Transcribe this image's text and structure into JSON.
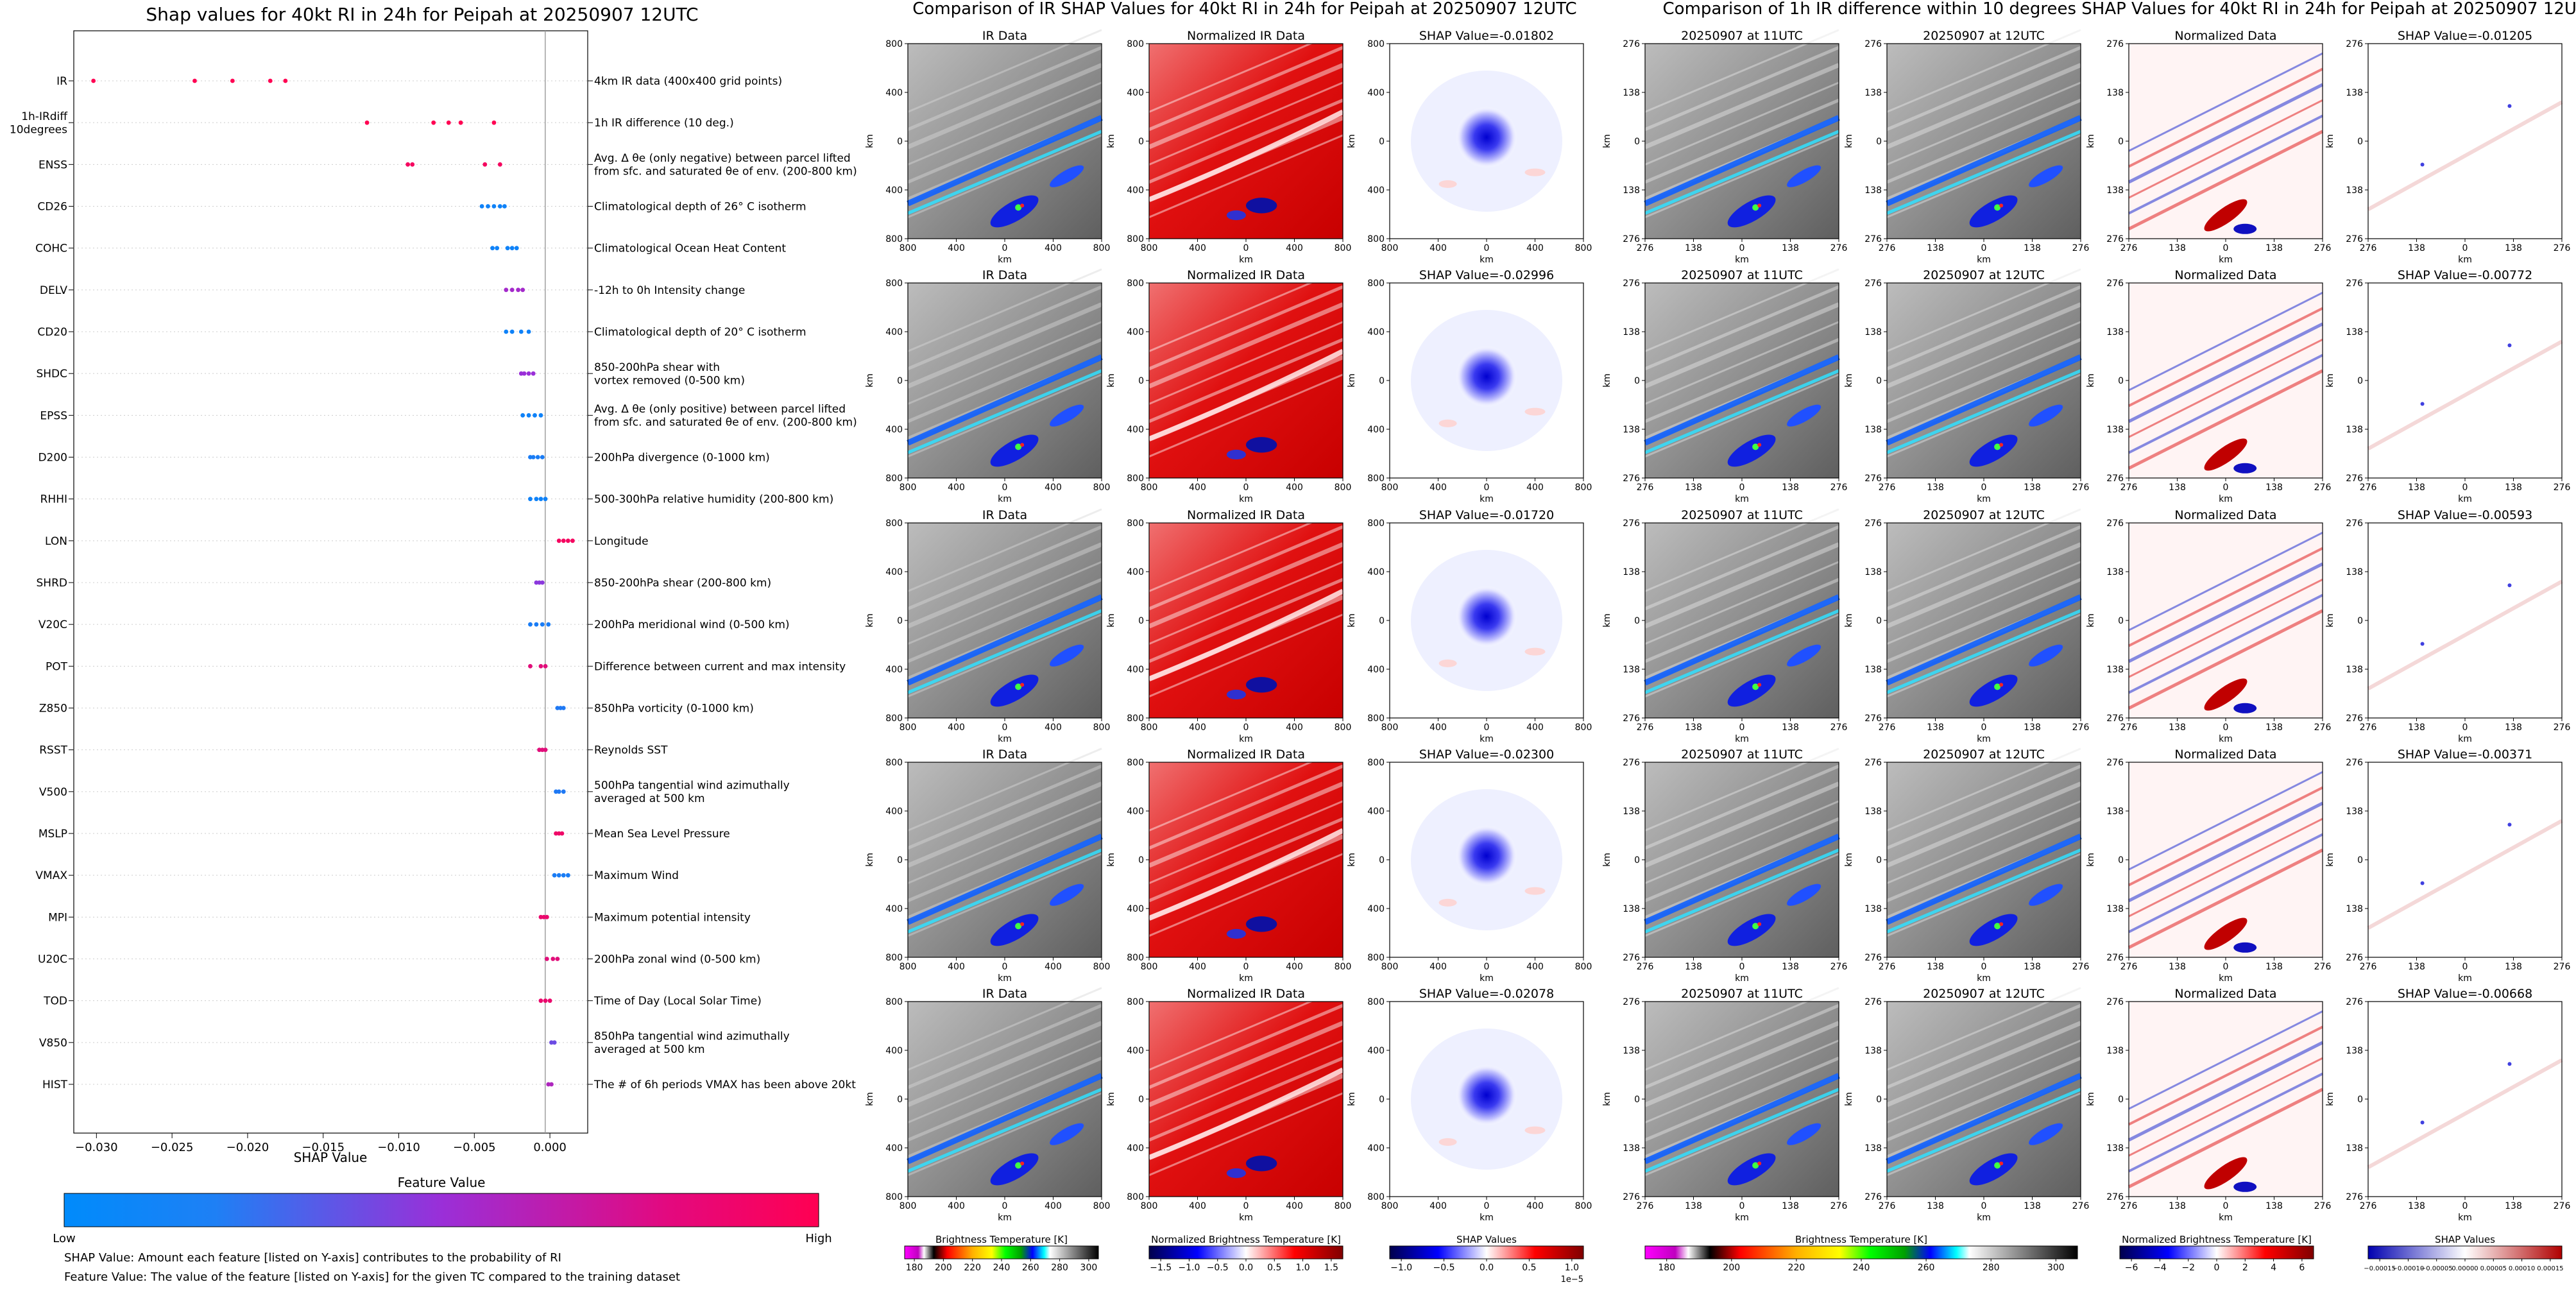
{
  "swarm": {
    "title": "Shap values for 40kt RI in 24h for Peipah at 20250907 12UTC",
    "xlabel": "SHAP Value",
    "colorbar_title": "Feature Value",
    "colorbar_low": "Low",
    "colorbar_high": "High",
    "colors": {
      "low": "#008bfb",
      "high": "#ff0052"
    },
    "notes": [
      "SHAP Value: Amount each feature [listed on Y-axis] contributes to the probability of RI",
      "Feature Value: The value of the feature [listed on Y-axis] for the given TC compared to the training dataset"
    ]
  },
  "ir_group": {
    "title": "Comparison of IR SHAP Values for 40kt RI in 24h for Peipah at 20250907 12UTC",
    "col_titles": [
      "IR Data",
      "Normalized IR Data"
    ],
    "shap_titles": [
      "SHAP Value=-0.01802",
      "SHAP Value=-0.02996",
      "SHAP Value=-0.01720",
      "SHAP Value=-0.02300",
      "SHAP Value=-0.02078"
    ],
    "axis_ticks": [
      "800",
      "400",
      "0",
      "400",
      "800"
    ],
    "axis_label": "km",
    "colorbars": [
      {
        "label": "Brightness Temperature [K]",
        "ticks": [
          "180",
          "200",
          "220",
          "240",
          "260",
          "280",
          "300"
        ]
      },
      {
        "label": "Normalized Brightness Temperature [K]",
        "ticks": [
          "−1.5",
          "−1.0",
          "−0.5",
          "0.0",
          "0.5",
          "1.0",
          "1.5"
        ]
      },
      {
        "label": "SHAP Values",
        "ticks": [
          "−1.0",
          "−0.5",
          "0.0",
          "0.5",
          "1.0"
        ],
        "offset": "1e−5"
      }
    ]
  },
  "diff_group": {
    "title": "Comparison of 1h IR difference within 10 degrees SHAP Values for 40kt RI in 24h for Peipah at 20250907 12UTC",
    "col_titles": [
      "20250907 at 11UTC",
      "20250907 at 12UTC",
      "Normalized Data"
    ],
    "shap_titles": [
      "SHAP Value=-0.01205",
      "SHAP Value=-0.00772",
      "SHAP Value=-0.00593",
      "SHAP Value=-0.00371",
      "SHAP Value=-0.00668"
    ],
    "axis_ticks": [
      "276",
      "138",
      "0",
      "138",
      "276"
    ],
    "axis_label": "km",
    "colorbars": [
      {
        "label": "Brightness Temperature [K]",
        "ticks": [
          "180",
          "200",
          "220",
          "240",
          "260",
          "280",
          "300"
        ]
      },
      {
        "label": "Normalized Brightness Temperature [K]",
        "ticks": [
          "−6",
          "−4",
          "−2",
          "0",
          "2",
          "4",
          "6"
        ]
      },
      {
        "label": "SHAP Values",
        "ticks": [
          "−0.00015",
          "−0.00010",
          "−0.00005",
          "0.00000",
          "0.00005",
          "0.00010",
          "0.00015"
        ]
      }
    ]
  },
  "chart_data": [
    {
      "type": "scatter",
      "subtype": "beeswarm",
      "title": "Shap values for 40kt RI in 24h for Peipah at 20250907 12UTC",
      "xlabel": "SHAP Value",
      "xlim": [
        -0.0315,
        0.0025
      ],
      "xticks": [
        -0.03,
        -0.025,
        -0.02,
        -0.015,
        -0.01,
        -0.005,
        0.0
      ],
      "xtick_labels": [
        "−0.030",
        "−0.025",
        "−0.020",
        "−0.015",
        "−0.010",
        "−0.005",
        "0.000"
      ],
      "features": [
        {
          "name": "IR",
          "description": "4km IR data (400x400 grid points)",
          "shap": [
            -0.0302,
            -0.0235,
            -0.021,
            -0.0185,
            -0.0175
          ],
          "fv": 1.0
        },
        {
          "name": "1h-IRdiff\n10degrees",
          "description": "1h IR difference (10 deg.)",
          "shap": [
            -0.0121,
            -0.0077,
            -0.0067,
            -0.0059,
            -0.0037
          ],
          "fv": 1.0
        },
        {
          "name": "ENSS",
          "description": "Avg. Δ θe (only negative) between parcel lifted\nfrom sfc. and saturated θe of env. (200-800 km)",
          "shap": [
            -0.0094,
            -0.0091,
            -0.0043,
            -0.0033
          ],
          "fv": 0.95
        },
        {
          "name": "CD26",
          "description": "Climatological depth of 26° C isotherm",
          "shap": [
            -0.0045,
            -0.0041,
            -0.0037,
            -0.0033,
            -0.003
          ],
          "fv": 0.05
        },
        {
          "name": "COHC",
          "description": "Climatological Ocean Heat Content",
          "shap": [
            -0.0038,
            -0.0035,
            -0.0028,
            -0.0025,
            -0.0022
          ],
          "fv": 0.05
        },
        {
          "name": "DELV",
          "description": "-12h to 0h Intensity change",
          "shap": [
            -0.0029,
            -0.0025,
            -0.0021,
            -0.0018
          ],
          "fv": 0.55
        },
        {
          "name": "CD20",
          "description": "Climatological depth of 20° C isotherm",
          "shap": [
            -0.0029,
            -0.0025,
            -0.0019,
            -0.0014
          ],
          "fv": 0.05
        },
        {
          "name": "SHDC",
          "description": "850-200hPa shear with\nvortex removed (0-500 km)",
          "shap": [
            -0.0019,
            -0.0017,
            -0.0014,
            -0.0011
          ],
          "fv": 0.5
        },
        {
          "name": "EPSS",
          "description": "Avg. Δ θe (only positive) between parcel lifted\nfrom sfc. and saturated θe of env. (200-800 km)",
          "shap": [
            -0.0018,
            -0.0014,
            -0.001,
            -0.0006
          ],
          "fv": 0.05
        },
        {
          "name": "D200",
          "description": "200hPa divergence (0-1000 km)",
          "shap": [
            -0.0013,
            -0.0011,
            -0.0008,
            -0.0005
          ],
          "fv": 0.08
        },
        {
          "name": "RHHI",
          "description": "500-300hPa relative humidity (200-800 km)",
          "shap": [
            -0.0013,
            -0.0009,
            -0.0006,
            -0.0003
          ],
          "fv": 0.05
        },
        {
          "name": "LON",
          "description": "Longitude",
          "shap": [
            0.0006,
            0.0009,
            0.0012,
            0.0015
          ],
          "fv": 0.95
        },
        {
          "name": "SHRD",
          "description": "850-200hPa shear (200-800 km)",
          "shap": [
            -0.0009,
            -0.0007,
            -0.0005
          ],
          "fv": 0.45
        },
        {
          "name": "V20C",
          "description": "200hPa meridional wind (0-500 km)",
          "shap": [
            -0.0013,
            -0.0009,
            -0.0005,
            -0.0001
          ],
          "fv": 0.08
        },
        {
          "name": "POT",
          "description": "Difference between current and max intensity",
          "shap": [
            -0.0013,
            -0.0006,
            -0.0003
          ],
          "fv": 0.85
        },
        {
          "name": "Z850",
          "description": "850hPa vorticity (0-1000 km)",
          "shap": [
            0.0005,
            0.0007,
            0.0009
          ],
          "fv": 0.1
        },
        {
          "name": "RSST",
          "description": "Reynolds SST",
          "shap": [
            -0.0007,
            -0.0005,
            -0.0003
          ],
          "fv": 0.85
        },
        {
          "name": "V500",
          "description": "500hPa tangential wind azimuthally\naveraged at 500 km",
          "shap": [
            0.0004,
            0.0006,
            0.0009
          ],
          "fv": 0.1
        },
        {
          "name": "MSLP",
          "description": "Mean Sea Level Pressure",
          "shap": [
            0.0004,
            0.0006,
            0.0008
          ],
          "fv": 0.92
        },
        {
          "name": "VMAX",
          "description": "Maximum Wind",
          "shap": [
            0.0003,
            0.0006,
            0.0009,
            0.0012
          ],
          "fv": 0.08
        },
        {
          "name": "MPI",
          "description": "Maximum potential intensity",
          "shap": [
            -0.0006,
            -0.0004,
            -0.0002
          ],
          "fv": 0.9
        },
        {
          "name": "U20C",
          "description": "200hPa zonal wind (0-500 km)",
          "shap": [
            -0.0002,
            0.0002,
            0.0005
          ],
          "fv": 0.85
        },
        {
          "name": "TOD",
          "description": "Time of Day (Local Solar Time)",
          "shap": [
            -0.0006,
            -0.0003,
            0.0
          ],
          "fv": 0.9
        },
        {
          "name": "V850",
          "description": "850hPa tangential wind azimuthally\naveraged at 500 km",
          "shap": [
            0.0001,
            0.0003
          ],
          "fv": 0.35
        },
        {
          "name": "HIST",
          "description": "The # of 6h periods VMAX has been above 20kt",
          "shap": [
            -0.0001,
            0.0001
          ],
          "fv": 0.6
        }
      ]
    }
  ]
}
